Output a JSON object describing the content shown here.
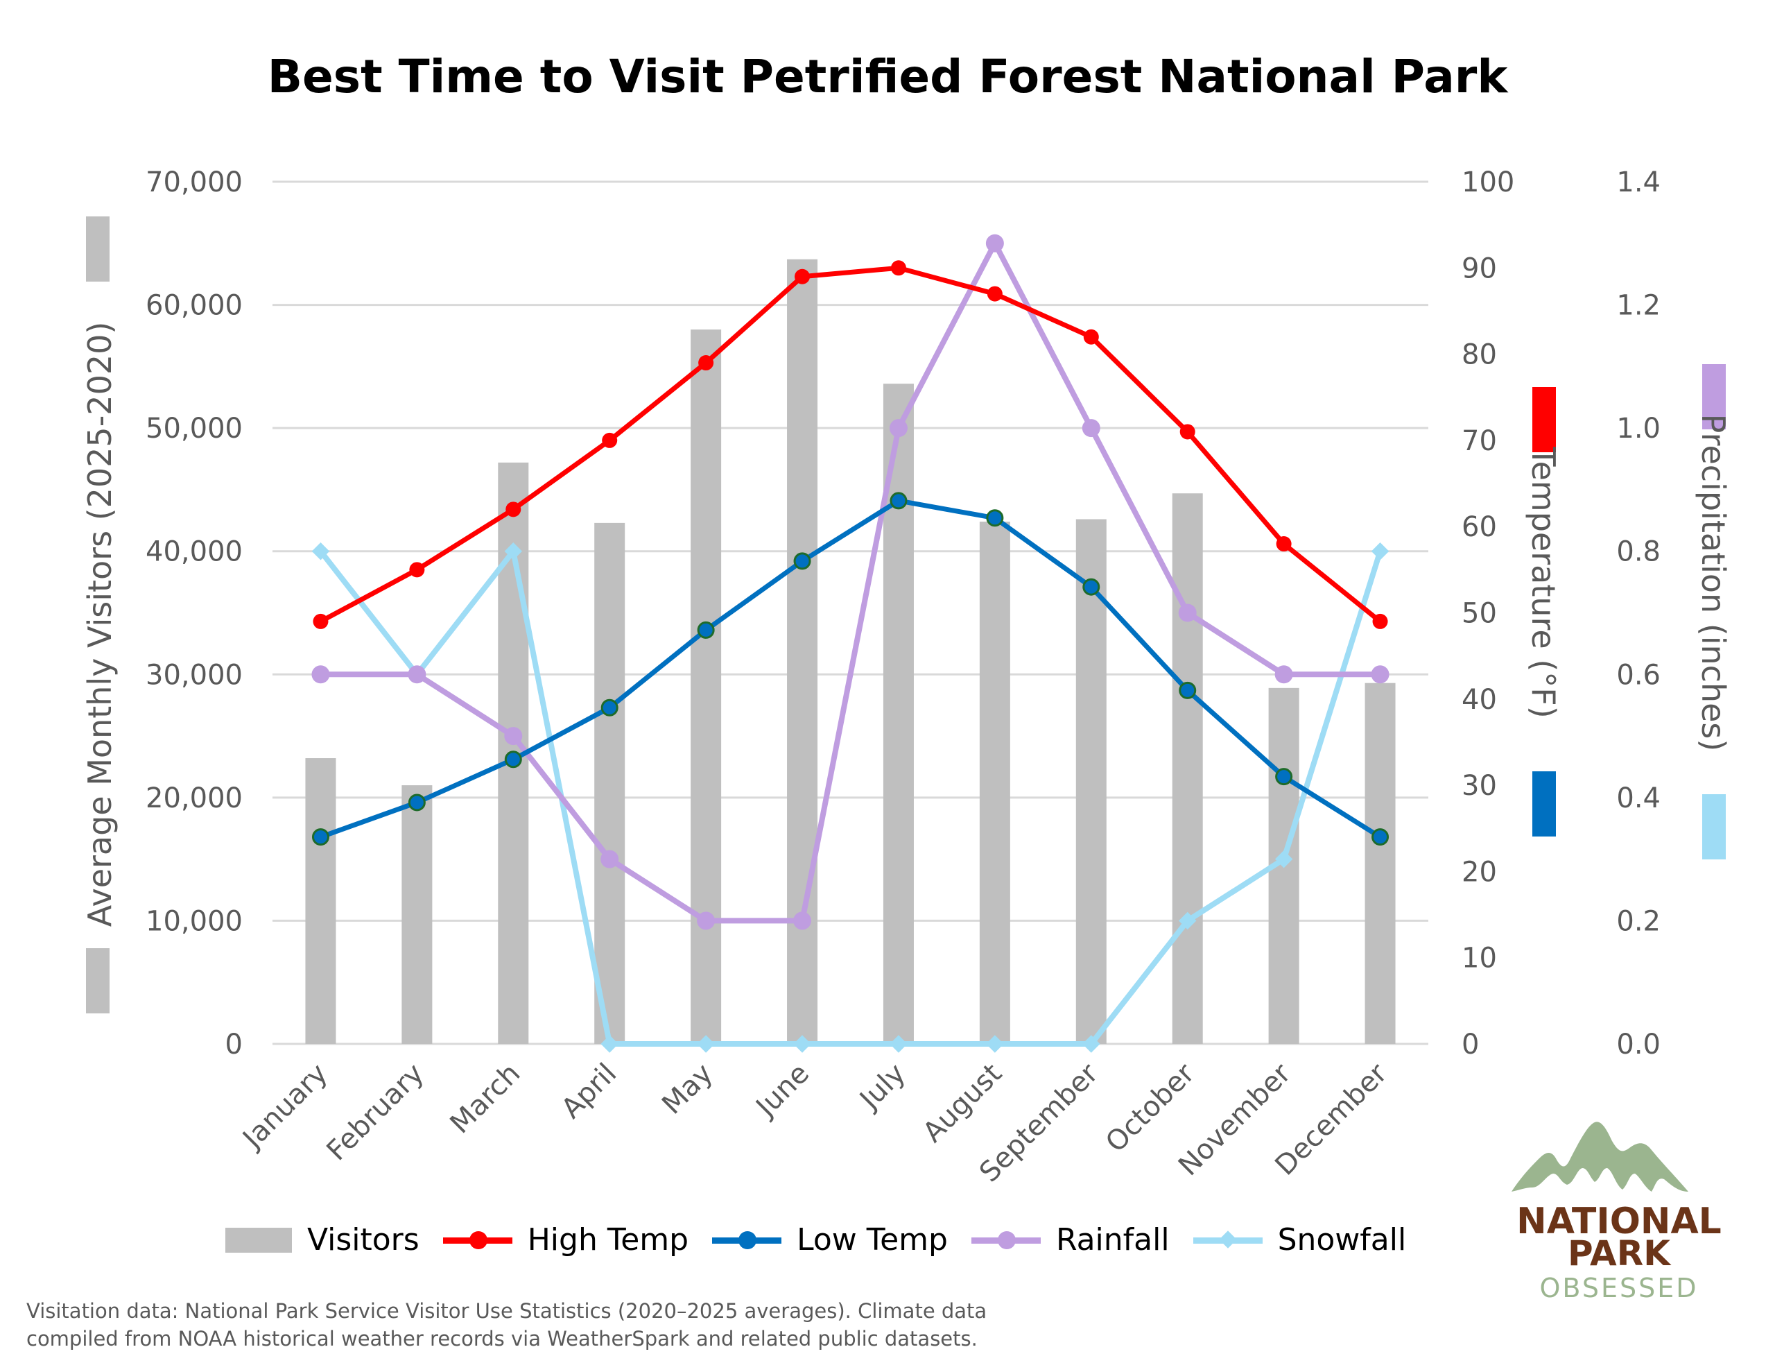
{
  "title": "Best Time to Visit Petrified Forest National Park",
  "axes": {
    "left": {
      "label": "Average Monthly Visitors (2025-2020)",
      "ticks": [
        "0",
        "10,000",
        "20,000",
        "30,000",
        "40,000",
        "50,000",
        "60,000",
        "70,000"
      ]
    },
    "right_temp": {
      "label": "Temperature (°F)",
      "ticks": [
        "0",
        "10",
        "20",
        "30",
        "40",
        "50",
        "60",
        "70",
        "80",
        "90",
        "100"
      ]
    },
    "right_precip": {
      "label": "Precipitation (inches)",
      "ticks": [
        "0.0",
        "0.2",
        "0.4",
        "0.6",
        "0.8",
        "1.0",
        "1.2",
        "1.4"
      ]
    }
  },
  "legend": {
    "visitors": "Visitors",
    "high_temp": "High Temp",
    "low_temp": "Low Temp",
    "rainfall": "Rainfall",
    "snowfall": "Snowfall"
  },
  "colors": {
    "visitors": "#bfbfbf",
    "high_temp": "#ff0000",
    "low_temp": "#0070c0",
    "low_temp_marker_border": "#1e6b2a",
    "rainfall": "#bf9de0",
    "snowfall": "#9edcf5",
    "grid": "#d9d9d9",
    "tick_text": "#595959",
    "logo_mountain": "#9bb58f",
    "logo_brown": "#6b3418",
    "logo_obsessed": "#9bb58f"
  },
  "footnote": {
    "line1": "Visitation data: National Park Service Visitor Use Statistics (2020–2025 averages). Climate data",
    "line2": "compiled from NOAA historical weather records via WeatherSpark and related public datasets."
  },
  "logo": {
    "line1": "NATIONAL",
    "line2": "PARK",
    "line3": "OBSESSED"
  },
  "chart_data": {
    "type": "bar",
    "title": "Best Time to Visit Petrified Forest National Park",
    "categories": [
      "January",
      "February",
      "March",
      "April",
      "May",
      "June",
      "July",
      "August",
      "September",
      "October",
      "November",
      "December"
    ],
    "series": [
      {
        "name": "Visitors",
        "type": "bar",
        "axis": "left",
        "values": [
          23200,
          21000,
          47200,
          42300,
          58000,
          63700,
          53600,
          42400,
          42600,
          44700,
          28900,
          29300
        ]
      },
      {
        "name": "High Temp",
        "type": "line",
        "axis": "right_temp",
        "values": [
          49,
          55,
          62,
          70,
          79,
          89,
          90,
          87,
          82,
          71,
          58,
          49
        ]
      },
      {
        "name": "Low Temp",
        "type": "line",
        "axis": "right_temp",
        "values": [
          24,
          28,
          33,
          39,
          48,
          56,
          63,
          61,
          53,
          41,
          31,
          24
        ]
      },
      {
        "name": "Rainfall",
        "type": "line",
        "axis": "right_precip",
        "values": [
          0.6,
          0.6,
          0.5,
          0.3,
          0.2,
          0.2,
          1.0,
          1.3,
          1.0,
          0.7,
          0.6,
          0.6
        ]
      },
      {
        "name": "Snowfall",
        "type": "line",
        "axis": "right_precip",
        "values": [
          0.8,
          0.6,
          0.8,
          0.0,
          0.0,
          0.0,
          0.0,
          0.0,
          0.0,
          0.2,
          0.3,
          0.8
        ]
      }
    ],
    "xlabel": "",
    "ylabel": "Average Monthly Visitors (2025-2020)",
    "ylabel_right": [
      "Temperature (°F)",
      "Precipitation (inches)"
    ],
    "ylim": [
      0,
      70000
    ],
    "ylim_temp": [
      0,
      100
    ],
    "ylim_precip": [
      0,
      1.4
    ],
    "grid": true,
    "legend_position": "bottom"
  }
}
